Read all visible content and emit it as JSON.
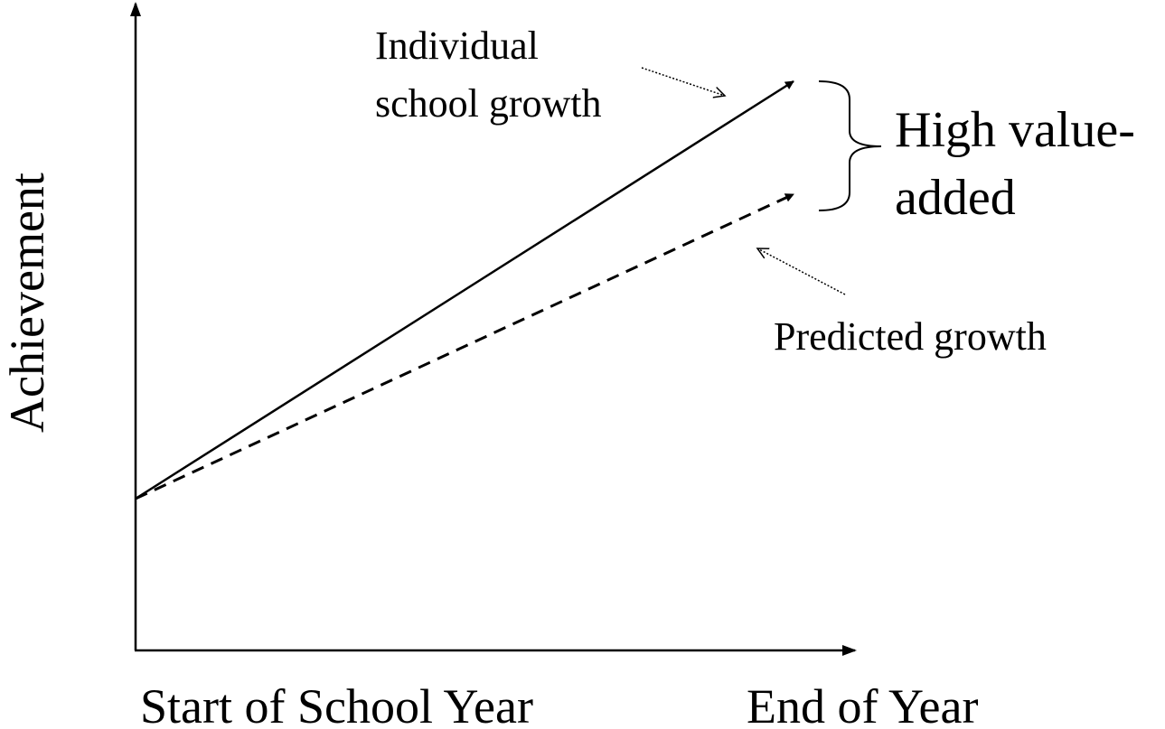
{
  "axes": {
    "y_label": "Achievement",
    "x_start_label": "Start of School Year",
    "x_end_label": "End of Year"
  },
  "annotations": {
    "individual_growth": [
      "Individual",
      "school growth"
    ],
    "predicted_growth": "Predicted growth",
    "value_added": [
      "High value-",
      "added"
    ]
  }
}
